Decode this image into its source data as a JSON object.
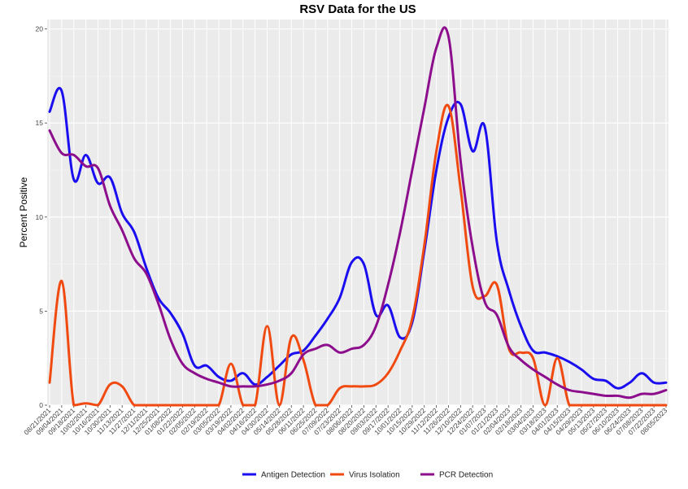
{
  "chart_data": {
    "type": "line",
    "title": "RSV Data for the US",
    "xlabel": "",
    "ylabel": "Percent Positive",
    "ylim": [
      0,
      20.5
    ],
    "yticks": [
      0,
      5,
      10,
      15,
      20
    ],
    "grid": true,
    "legend_position": "bottom",
    "x_ticks": [
      "08/21/2021",
      "09/04/2021",
      "09/18/2021",
      "10/02/2021",
      "10/16/2021",
      "10/30/2021",
      "11/13/2021",
      "11/27/2021",
      "12/11/2021",
      "12/25/2021",
      "01/08/2022",
      "01/22/2022",
      "02/05/2022",
      "02/19/2022",
      "03/05/2022",
      "03/19/2022",
      "04/02/2022",
      "04/16/2022",
      "04/30/2022",
      "05/14/2022",
      "05/28/2022",
      "06/11/2022",
      "06/25/2022",
      "07/09/2022",
      "07/23/2022",
      "08/06/2022",
      "08/20/2022",
      "09/03/2022",
      "09/17/2022",
      "10/01/2022",
      "10/15/2022",
      "10/29/2022",
      "11/12/2022",
      "11/26/2022",
      "12/10/2022",
      "12/24/2022",
      "01/07/2023",
      "01/21/2023",
      "02/04/2023",
      "02/18/2023",
      "03/04/2023",
      "03/18/2023",
      "04/01/2023",
      "04/15/2023",
      "04/29/2023",
      "05/13/2023",
      "05/27/2023",
      "06/10/2023",
      "06/24/2023",
      "07/08/2023",
      "07/22/2023",
      "08/05/2023"
    ],
    "series": [
      {
        "name": "Antigen Detection",
        "color": "#1a0ef0",
        "values": [
          15.6,
          16.7,
          12.0,
          13.3,
          11.8,
          12.1,
          10.2,
          9.2,
          7.3,
          5.7,
          4.9,
          3.8,
          2.1,
          2.1,
          1.5,
          1.3,
          1.7,
          1.1,
          1.5,
          2.1,
          2.7,
          2.9,
          3.7,
          4.6,
          5.7,
          7.6,
          7.5,
          4.8,
          5.3,
          3.6,
          4.4,
          8.2,
          12.5,
          15.3,
          16.0,
          13.5,
          14.8,
          8.7,
          6.1,
          4.2,
          2.9,
          2.8,
          2.6,
          2.3,
          1.9,
          1.4,
          1.3,
          0.9,
          1.2,
          1.7,
          1.2,
          1.2
        ]
      },
      {
        "name": "Virus Isolation",
        "color": "#f04a10",
        "values": [
          1.2,
          6.6,
          0.0,
          0.1,
          0.0,
          1.1,
          1.0,
          0.0,
          0.0,
          0.0,
          0.0,
          0.0,
          0.0,
          0.0,
          0.0,
          2.2,
          0.0,
          0.0,
          4.2,
          0.0,
          3.6,
          2.4,
          0.0,
          0.0,
          0.9,
          1.0,
          1.0,
          1.1,
          1.7,
          2.9,
          4.6,
          8.5,
          13.5,
          15.9,
          11.5,
          6.3,
          5.8,
          6.4,
          3.0,
          2.8,
          2.5,
          0.0,
          2.5,
          0.0,
          0.0,
          0.0,
          0.0,
          0.0,
          0.0,
          0.0,
          0.0,
          0.0
        ]
      },
      {
        "name": "PCR Detection",
        "color": "#8c0e8c",
        "values": [
          14.6,
          13.4,
          13.3,
          12.7,
          12.6,
          10.6,
          9.3,
          7.8,
          7.0,
          5.4,
          3.5,
          2.2,
          1.7,
          1.4,
          1.2,
          1.0,
          1.0,
          1.0,
          1.1,
          1.3,
          1.7,
          2.7,
          3.0,
          3.2,
          2.8,
          3.0,
          3.2,
          4.2,
          6.4,
          9.2,
          12.5,
          15.8,
          19.0,
          19.6,
          13.0,
          8.4,
          5.5,
          4.8,
          3.1,
          2.4,
          1.9,
          1.5,
          1.1,
          0.8,
          0.7,
          0.6,
          0.5,
          0.5,
          0.4,
          0.6,
          0.6,
          0.8
        ]
      }
    ]
  }
}
